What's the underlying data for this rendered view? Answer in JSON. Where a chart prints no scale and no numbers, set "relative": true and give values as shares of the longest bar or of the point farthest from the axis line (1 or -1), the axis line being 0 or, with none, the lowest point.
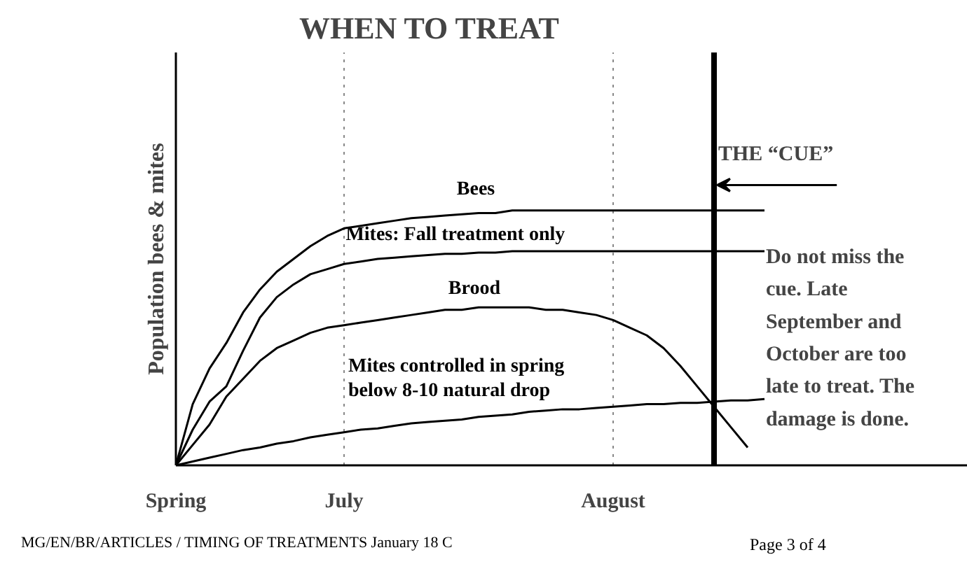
{
  "chart_data": {
    "type": "line",
    "title": "WHEN TO TREAT",
    "ylabel": "Population bees & mites",
    "relative": true,
    "line_style": "solid",
    "grid": "x",
    "categories": [
      "Spring",
      null,
      null,
      null,
      null,
      null,
      null,
      null,
      null,
      null,
      "July",
      null,
      null,
      null,
      null,
      null,
      null,
      null,
      null,
      null,
      null,
      null,
      null,
      null,
      null,
      null,
      "August",
      null,
      null,
      null,
      null,
      null,
      null,
      null,
      null,
      null
    ],
    "series": [
      {
        "name": "Bees",
        "color": "#000000",
        "values": [
          0,
          0.24,
          0.38,
          0.48,
          0.6,
          0.69,
          0.76,
          0.81,
          0.86,
          0.9,
          0.93,
          0.94,
          0.95,
          0.96,
          0.97,
          0.975,
          0.98,
          0.985,
          0.99,
          0.99,
          1,
          1,
          1,
          1,
          1,
          1,
          1,
          1,
          1,
          1,
          1,
          1,
          1,
          1,
          1,
          1
        ]
      },
      {
        "name": "Mites: Fall treatment only",
        "color": "#000000",
        "values": [
          0,
          0.14,
          0.25,
          0.31,
          0.45,
          0.58,
          0.66,
          0.71,
          0.75,
          0.77,
          0.79,
          0.8,
          0.81,
          0.815,
          0.82,
          0.825,
          0.83,
          0.83,
          0.835,
          0.835,
          0.84,
          0.84,
          0.84,
          0.84,
          0.84,
          0.84,
          0.84,
          0.84,
          0.84,
          0.84,
          0.84,
          0.84,
          0.84,
          0.84,
          0.84,
          0.84
        ]
      },
      {
        "name": "Brood",
        "color": "#000000",
        "values": [
          0,
          0.08,
          0.16,
          0.27,
          0.34,
          0.41,
          0.46,
          0.49,
          0.52,
          0.54,
          0.55,
          0.56,
          0.57,
          0.58,
          0.59,
          0.6,
          0.61,
          0.61,
          0.62,
          0.62,
          0.62,
          0.62,
          0.61,
          0.61,
          0.6,
          0.59,
          0.57,
          0.54,
          0.51,
          0.46,
          0.39,
          0.31,
          0.23,
          0.15,
          0.07,
          null
        ]
      },
      {
        "name": "Mites controlled in spring\nbelow 8-10 natural drop",
        "color": "#000000",
        "values": [
          0,
          0.015,
          0.03,
          0.045,
          0.06,
          0.07,
          0.085,
          0.095,
          0.11,
          0.12,
          0.13,
          0.14,
          0.145,
          0.155,
          0.165,
          0.17,
          0.175,
          0.18,
          0.19,
          0.195,
          0.2,
          0.21,
          0.215,
          0.22,
          0.22,
          0.225,
          0.23,
          0.235,
          0.24,
          0.24,
          0.245,
          0.245,
          0.25,
          0.255,
          0.255,
          0.26
        ]
      }
    ],
    "annotations": [
      "THE “CUE”",
      "Do not miss the\ncue.  Late\nSeptember and\nOctober are too\nlate to treat.  The\ndamage is done.",
      "MG/EN/BR/ARTICLES / TIMING OF TREATMENTS January 18 C",
      "Page 3 of 4"
    ]
  }
}
